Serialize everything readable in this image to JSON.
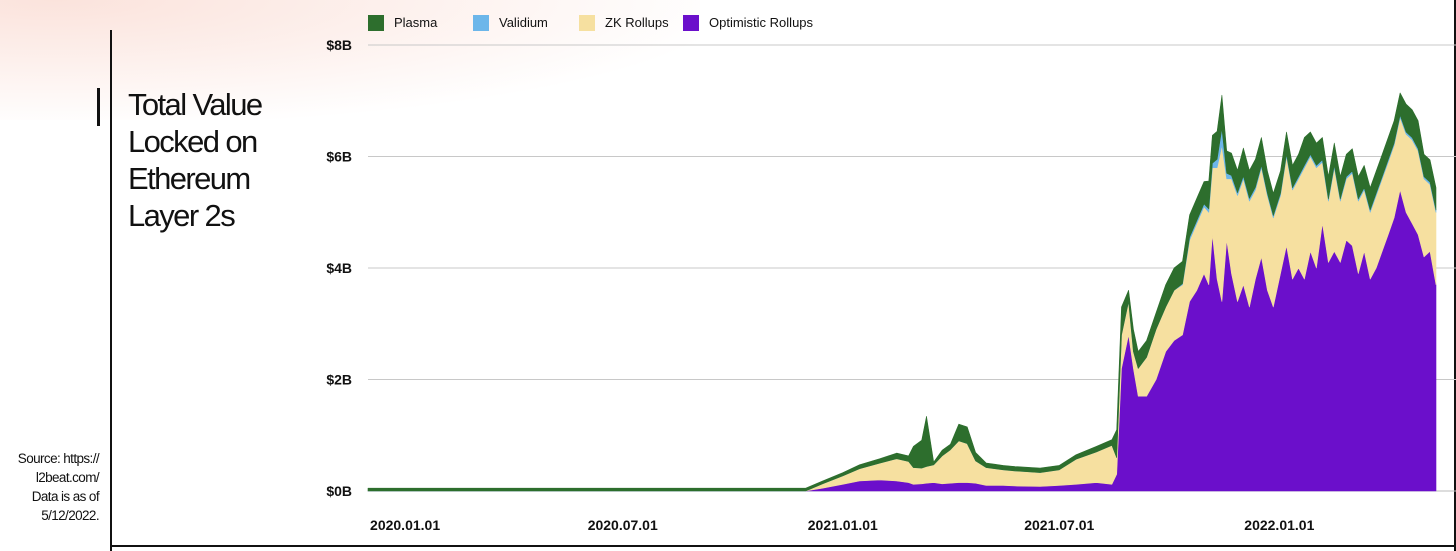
{
  "page": {
    "title": "Total Value Locked on Ethereum Layer 2s",
    "source_lines": [
      "Source: https://",
      "l2beat.com/",
      "Data is as of",
      "5/12/2022."
    ]
  },
  "chart_data": {
    "type": "area",
    "stacked": true,
    "title": "Total Value Locked on Ethereum Layer 2s",
    "x_unit": "date",
    "x_range": [
      "2019-12-01",
      "2022-05-12"
    ],
    "x_ticks": [
      {
        "date": "2020-01-01",
        "label": "2020.01.01"
      },
      {
        "date": "2020-07-01",
        "label": "2020.07.01"
      },
      {
        "date": "2021-01-01",
        "label": "2021.01.01"
      },
      {
        "date": "2021-07-01",
        "label": "2021.07.01"
      },
      {
        "date": "2022-01-01",
        "label": "2022.01.01"
      }
    ],
    "y_unit": "$B",
    "ylim": [
      0,
      8
    ],
    "y_ticks": [
      {
        "value": 0,
        "label": "$0B"
      },
      {
        "value": 2,
        "label": "$2B"
      },
      {
        "value": 4,
        "label": "$4B"
      },
      {
        "value": 6,
        "label": "$6B"
      },
      {
        "value": 8,
        "label": "$8B"
      }
    ],
    "grid": true,
    "legend_position": "top",
    "x": [
      "2019-12-01",
      "2020-12-01",
      "2020-12-15",
      "2021-01-01",
      "2021-01-15",
      "2021-02-01",
      "2021-02-15",
      "2021-02-25",
      "2021-03-01",
      "2021-03-08",
      "2021-03-12",
      "2021-03-18",
      "2021-03-25",
      "2021-04-01",
      "2021-04-08",
      "2021-04-15",
      "2021-04-22",
      "2021-05-01",
      "2021-05-08",
      "2021-05-15",
      "2021-05-25",
      "2021-06-15",
      "2021-07-01",
      "2021-07-15",
      "2021-08-01",
      "2021-08-14",
      "2021-08-18",
      "2021-08-22",
      "2021-08-28",
      "2021-09-01",
      "2021-09-05",
      "2021-09-12",
      "2021-09-20",
      "2021-09-28",
      "2021-10-05",
      "2021-10-12",
      "2021-10-18",
      "2021-10-24",
      "2021-10-30",
      "2021-11-03",
      "2021-11-06",
      "2021-11-10",
      "2021-11-14",
      "2021-11-18",
      "2021-11-22",
      "2021-11-27",
      "2021-12-02",
      "2021-12-07",
      "2021-12-12",
      "2021-12-17",
      "2021-12-22",
      "2021-12-27",
      "2022-01-02",
      "2022-01-07",
      "2022-01-12",
      "2022-01-17",
      "2022-01-22",
      "2022-01-27",
      "2022-02-01",
      "2022-02-06",
      "2022-02-11",
      "2022-02-16",
      "2022-02-21",
      "2022-02-26",
      "2022-03-03",
      "2022-03-08",
      "2022-03-13",
      "2022-03-18",
      "2022-03-23",
      "2022-03-28",
      "2022-04-02",
      "2022-04-07",
      "2022-04-12",
      "2022-04-17",
      "2022-04-22",
      "2022-04-27",
      "2022-05-02",
      "2022-05-07",
      "2022-05-12"
    ],
    "series": [
      {
        "name": "Optimistic Rollups",
        "color": "#6b0fcb",
        "values": [
          0,
          0,
          0.05,
          0.12,
          0.18,
          0.2,
          0.18,
          0.15,
          0.12,
          0.13,
          0.14,
          0.15,
          0.13,
          0.14,
          0.15,
          0.15,
          0.14,
          0.1,
          0.1,
          0.1,
          0.09,
          0.08,
          0.1,
          0.12,
          0.15,
          0.12,
          0.3,
          2.2,
          2.8,
          2.2,
          1.7,
          1.7,
          2.0,
          2.5,
          2.7,
          2.8,
          3.4,
          3.6,
          3.9,
          3.7,
          4.6,
          3.8,
          3.4,
          4.5,
          3.9,
          3.4,
          3.7,
          3.3,
          3.8,
          4.2,
          3.6,
          3.3,
          3.9,
          4.4,
          3.8,
          4.0,
          3.8,
          4.3,
          4.0,
          4.8,
          4.1,
          4.3,
          4.1,
          4.5,
          4.4,
          3.9,
          4.3,
          3.8,
          4.0,
          4.3,
          4.6,
          4.9,
          5.4,
          5.0,
          4.8,
          4.6,
          4.2,
          4.3,
          3.7
        ]
      },
      {
        "name": "ZK Rollups",
        "color": "#f6e0a0",
        "values": [
          0,
          0,
          0.08,
          0.15,
          0.22,
          0.3,
          0.4,
          0.38,
          0.3,
          0.28,
          0.3,
          0.32,
          0.5,
          0.6,
          0.75,
          0.7,
          0.4,
          0.32,
          0.3,
          0.28,
          0.27,
          0.25,
          0.28,
          0.45,
          0.55,
          0.7,
          0.3,
          0.6,
          0.6,
          0.3,
          0.5,
          0.7,
          0.9,
          0.8,
          0.9,
          0.9,
          1.1,
          1.2,
          1.2,
          1.3,
          1.2,
          2.0,
          2.8,
          1.1,
          1.7,
          1.9,
          1.9,
          1.9,
          1.6,
          1.6,
          1.7,
          1.6,
          1.4,
          1.6,
          1.6,
          1.6,
          2.0,
          1.7,
          1.8,
          1.1,
          1.1,
          1.5,
          1.1,
          1.1,
          1.3,
          1.3,
          1.1,
          1.2,
          1.3,
          1.3,
          1.3,
          1.3,
          1.3,
          1.4,
          1.5,
          1.5,
          1.4,
          1.2,
          1.3
        ]
      },
      {
        "name": "Validium",
        "color": "#6cb6ea",
        "values": [
          0,
          0,
          0,
          0,
          0,
          0,
          0,
          0,
          0,
          0,
          0,
          0,
          0,
          0,
          0,
          0,
          0,
          0,
          0,
          0,
          0,
          0,
          0,
          0,
          0,
          0,
          0,
          0,
          0,
          0,
          0,
          0,
          0,
          0,
          0,
          0.02,
          0.05,
          0.05,
          0.05,
          0.06,
          0.08,
          0.15,
          0.3,
          0.1,
          0.06,
          0.05,
          0.05,
          0.05,
          0.05,
          0.04,
          0.04,
          0.04,
          0.04,
          0.04,
          0.04,
          0.04,
          0.04,
          0.04,
          0.04,
          0.04,
          0.04,
          0.04,
          0.04,
          0.04,
          0.04,
          0.04,
          0.04,
          0.04,
          0.04,
          0.04,
          0.04,
          0.04,
          0.04,
          0.04,
          0.04,
          0.04,
          0.04,
          0.04,
          0.04
        ]
      },
      {
        "name": "Plasma",
        "color": "#2d6e2d",
        "values": [
          0.05,
          0.05,
          0.05,
          0.06,
          0.07,
          0.08,
          0.1,
          0.1,
          0.38,
          0.5,
          0.9,
          0.05,
          0.1,
          0.1,
          0.3,
          0.3,
          0.15,
          0.08,
          0.08,
          0.08,
          0.08,
          0.08,
          0.08,
          0.08,
          0.1,
          0.1,
          0.5,
          0.5,
          0.2,
          0.4,
          0.3,
          0.3,
          0.3,
          0.4,
          0.4,
          0.4,
          0.4,
          0.4,
          0.4,
          0.5,
          0.5,
          0.5,
          0.6,
          0.4,
          0.4,
          0.4,
          0.5,
          0.5,
          0.5,
          0.5,
          0.4,
          0.4,
          0.4,
          0.4,
          0.4,
          0.4,
          0.5,
          0.4,
          0.4,
          0.4,
          0.4,
          0.4,
          0.4,
          0.4,
          0.4,
          0.4,
          0.4,
          0.4,
          0.4,
          0.4,
          0.4,
          0.4,
          0.4,
          0.5,
          0.5,
          0.5,
          0.4,
          0.4,
          0.4
        ]
      }
    ]
  }
}
